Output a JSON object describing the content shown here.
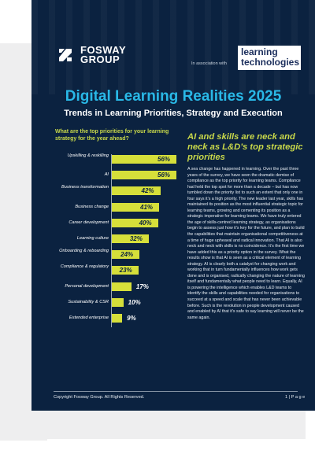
{
  "brand": {
    "name_line1": "FOSWAY",
    "name_line2": "GROUP"
  },
  "association": {
    "text": "In association with",
    "partner_line1": "learning",
    "partner_line2": "technologies"
  },
  "title": "Digital Learning Realities 2025",
  "subtitle": "Trends in Learning Priorities, Strategy and Execution",
  "chart_question": "What are the top priorities for your learning strategy for the year ahead?",
  "chart_data": {
    "type": "bar",
    "orientation": "horizontal",
    "categories": [
      "Upskilling & reskilling",
      "AI",
      "Business transformation",
      "Business change",
      "Career development",
      "Learning culture",
      "Onboarding & reboarding",
      "Compliance & regulatory",
      "Personal development",
      "Sustainability & CSR",
      "Extended enterprise"
    ],
    "values": [
      56,
      56,
      42,
      41,
      40,
      32,
      24,
      23,
      17,
      10,
      9
    ],
    "value_labels": [
      "56%",
      "56%",
      "42%",
      "41%",
      "40%",
      "32%",
      "24%",
      "23%",
      "17%",
      "10%",
      "9%"
    ],
    "bar_color": "#d6df3a"
  },
  "article": {
    "heading": "AI and skills are neck and neck as L&D’s top strategic priorities",
    "body": "A sea change has happened in learning. Over the past three years of the survey, we have seen the dramatic demise of compliance as the top priority for learning teams. Compliance had held the top spot for more than a decade – but has now tumbled down the priority list to such an extent that only one in four says it’s a high priority. The new leader last year, skills has maintained its position as the most influential strategic topic for learning teams, growing and cementing its position as a strategic imperative for learning teams. We have truly entered the age of skills-centred learning strategy, as organisations begin to assess just how it’s key for the future, and plan to build the capabilities that maintain organisational competitiveness at a time of huge upheaval and radical innovation. That AI is also neck and neck with skills is no coincidence. It’s the first time we have added this as a priority option in the survey. What the results show is that AI is seen as a critical element of learning strategy.  AI is clearly both a catalyst for changing work and working that in turn fundamentally influences how work gets done and is organised, radically changing the nature of learning itself and fundamentally what people need to learn. Equally, AI is powering the intelligence which enables L&D teams to identify the skills and capabilities needed for organisations to succeed at a speed and scale that has never been achievable before. Such is the revolution in people development caused and enabled by AI that it’s safe to say learning will never be the same again."
  },
  "footer": {
    "copyright": "Copyright Fosway Group. All Rights Reserved.",
    "page": "1 | P a g e"
  }
}
